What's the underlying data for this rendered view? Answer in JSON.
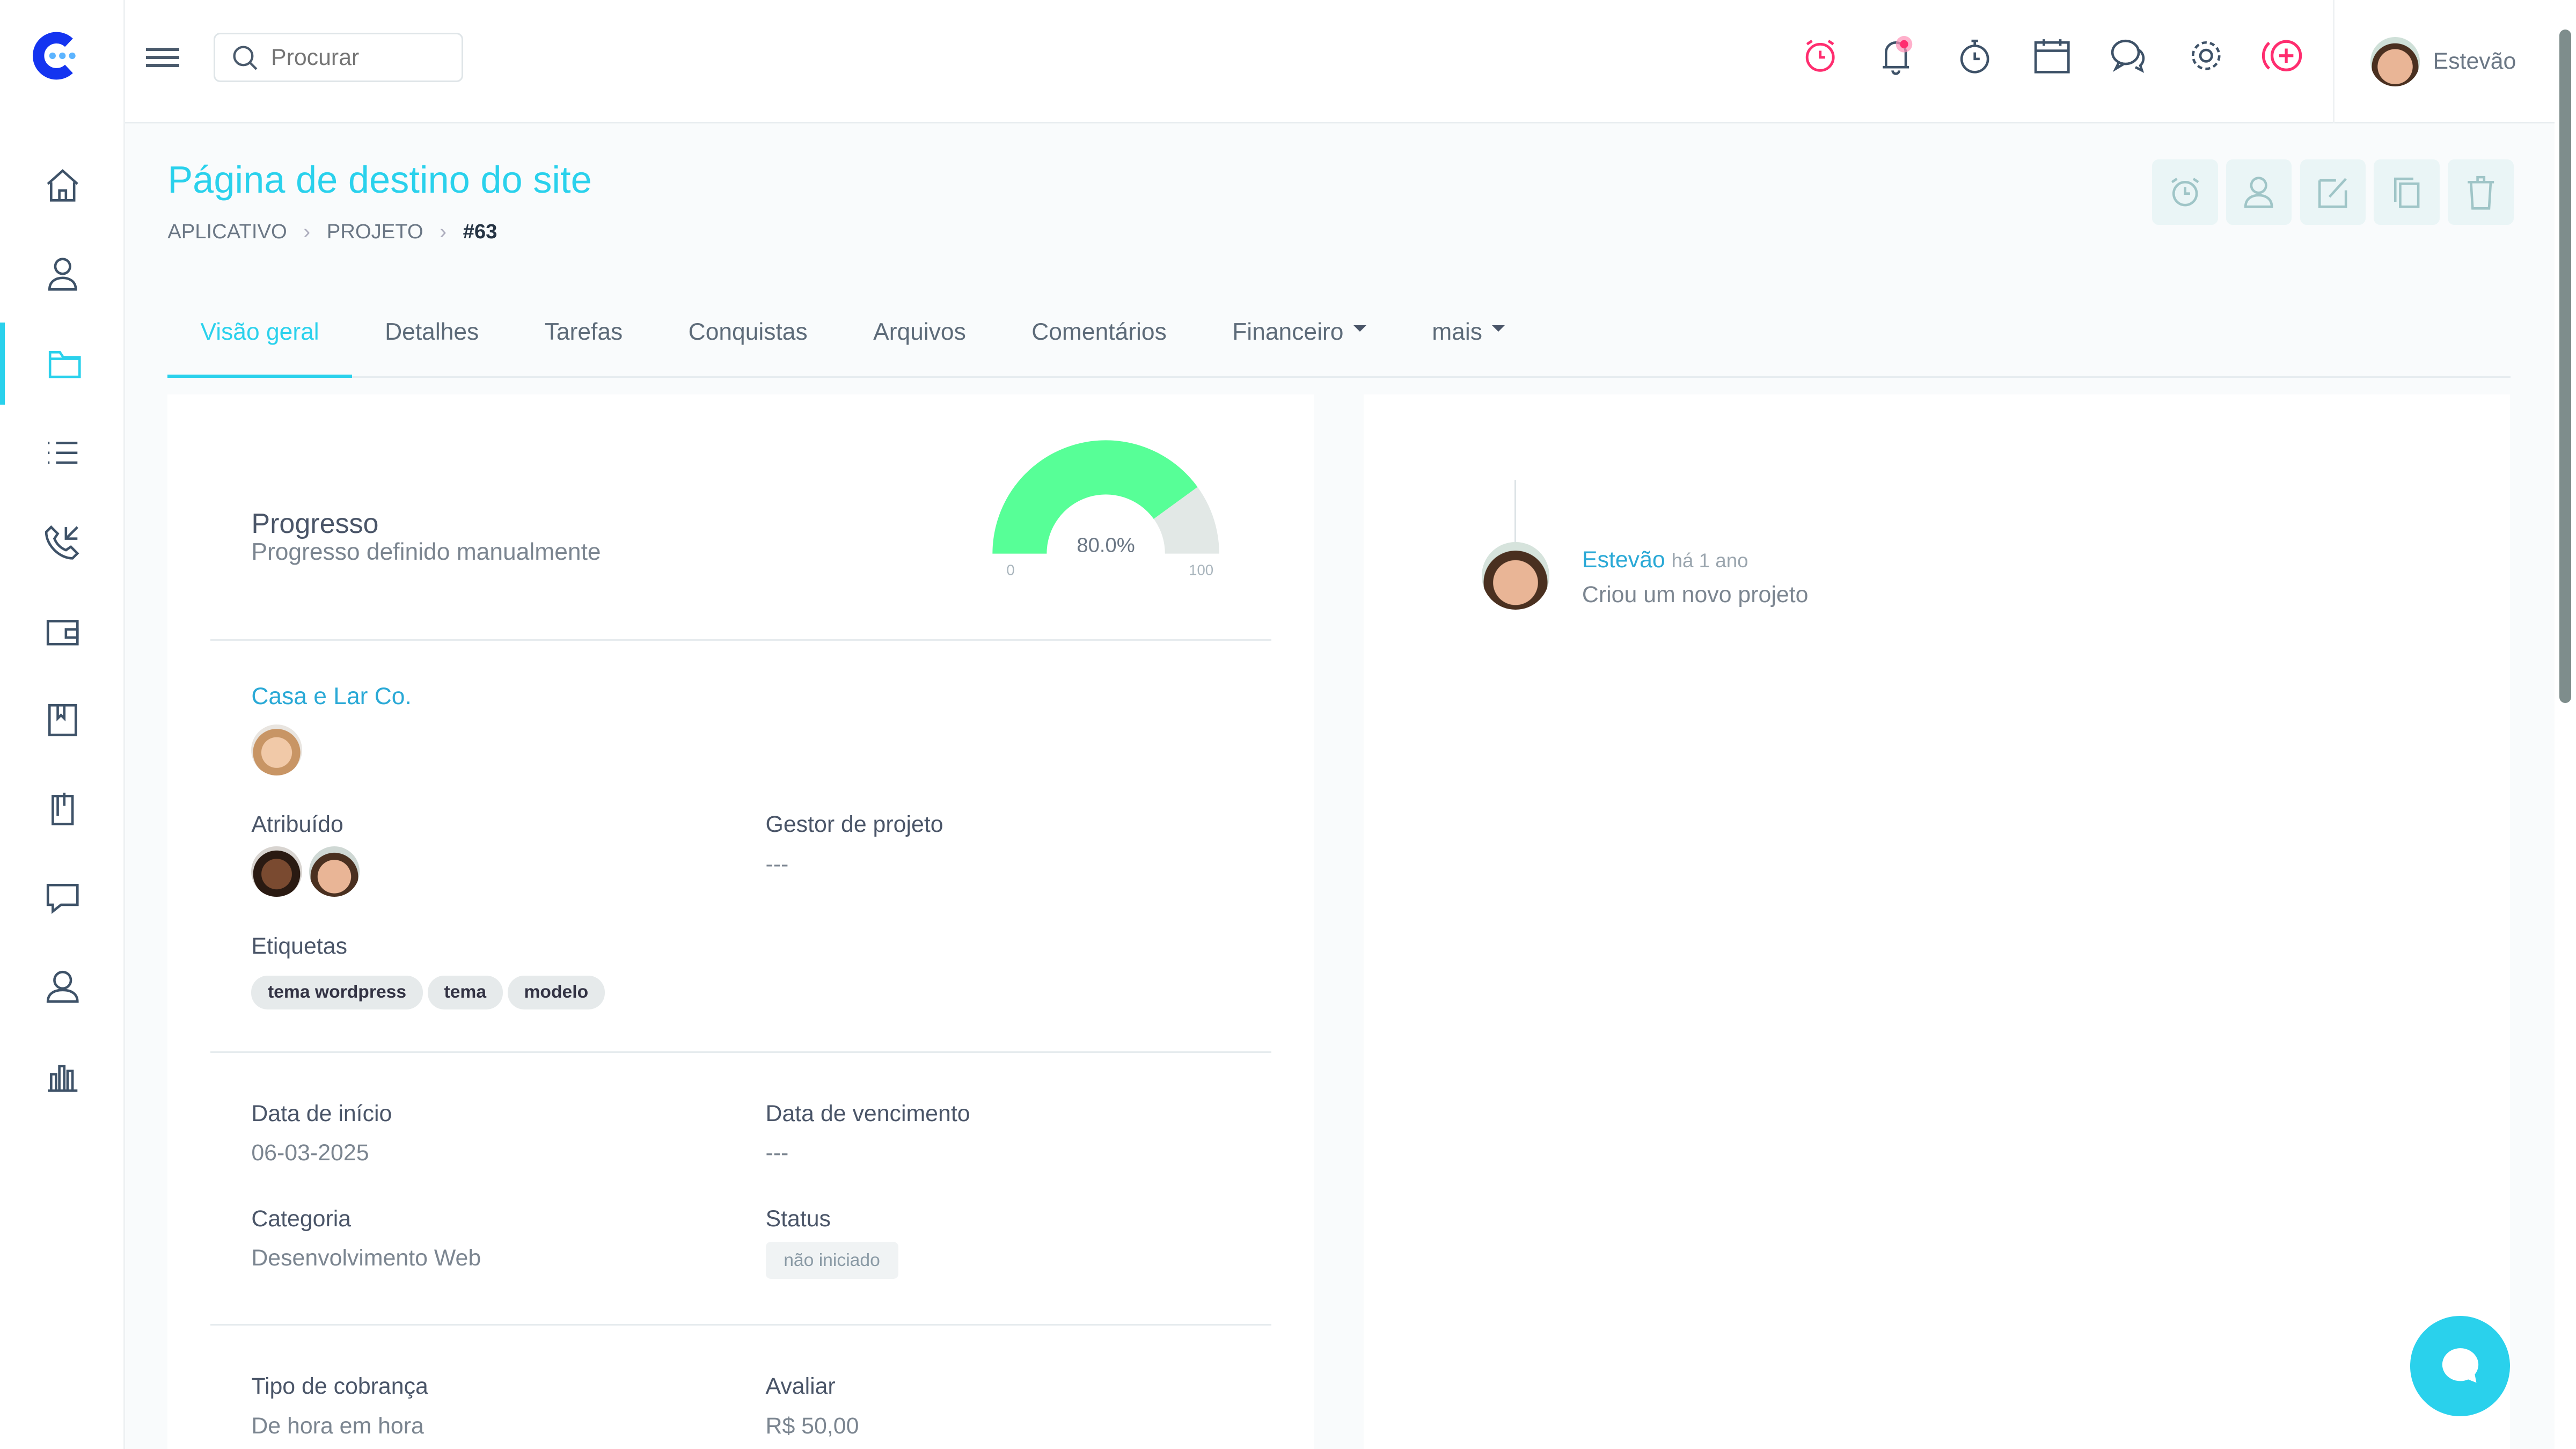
{
  "topbar": {
    "search_placeholder": "Procurar",
    "user_name": "Estevão",
    "icons": [
      "alarm-clock-icon",
      "bell-icon",
      "stopwatch-icon",
      "calendar-icon",
      "chat-icon",
      "gear-icon",
      "add-circle-icon"
    ],
    "accent": "#ff2d6f"
  },
  "sidebar": {
    "items": [
      "home-icon",
      "users-icon",
      "folder-icon",
      "list-icon",
      "phone-icon",
      "wallet-icon",
      "book-icon",
      "clip-icon",
      "message-icon",
      "user-icon",
      "chart-icon"
    ],
    "active": 2
  },
  "page": {
    "title": "Página de destino do site",
    "breadcrumb": [
      "APLICATIVO",
      "PROJETO",
      "#63"
    ]
  },
  "tabs": [
    {
      "label": "Visão geral"
    },
    {
      "label": "Detalhes"
    },
    {
      "label": "Tarefas"
    },
    {
      "label": "Conquistas"
    },
    {
      "label": "Arquivos"
    },
    {
      "label": "Comentários"
    },
    {
      "label": "Financeiro"
    },
    {
      "label": "mais"
    }
  ],
  "progress": {
    "title": "Progresso",
    "subtitle": "Progresso definido manualmente",
    "value": 80,
    "label": "80.0%",
    "min": "0",
    "max": "100",
    "color": "#57ff97"
  },
  "client": {
    "name": "Casa e Lar Co."
  },
  "fields": {
    "assigned_label": "Atribuído",
    "manager_label": "Gestor de projeto",
    "manager_value": "---",
    "tags_label": "Etiquetas",
    "tags": [
      "tema wordpress",
      "tema",
      "modelo"
    ],
    "start_label": "Data de início",
    "start_value": "06-03-2025",
    "due_label": "Data de vencimento",
    "due_value": "---",
    "category_label": "Categoria",
    "category_value": "Desenvolvimento Web",
    "status_label": "Status",
    "status_value": "não iniciado",
    "billing_label": "Tipo de cobrança",
    "billing_value": "De hora em hora",
    "rate_label": "Avaliar",
    "rate_value": "R$ 50,00"
  },
  "activity": {
    "user": "Estevão",
    "time": "há 1 ano",
    "text": "Criou um novo projeto"
  },
  "brand": "#2ad1ec"
}
